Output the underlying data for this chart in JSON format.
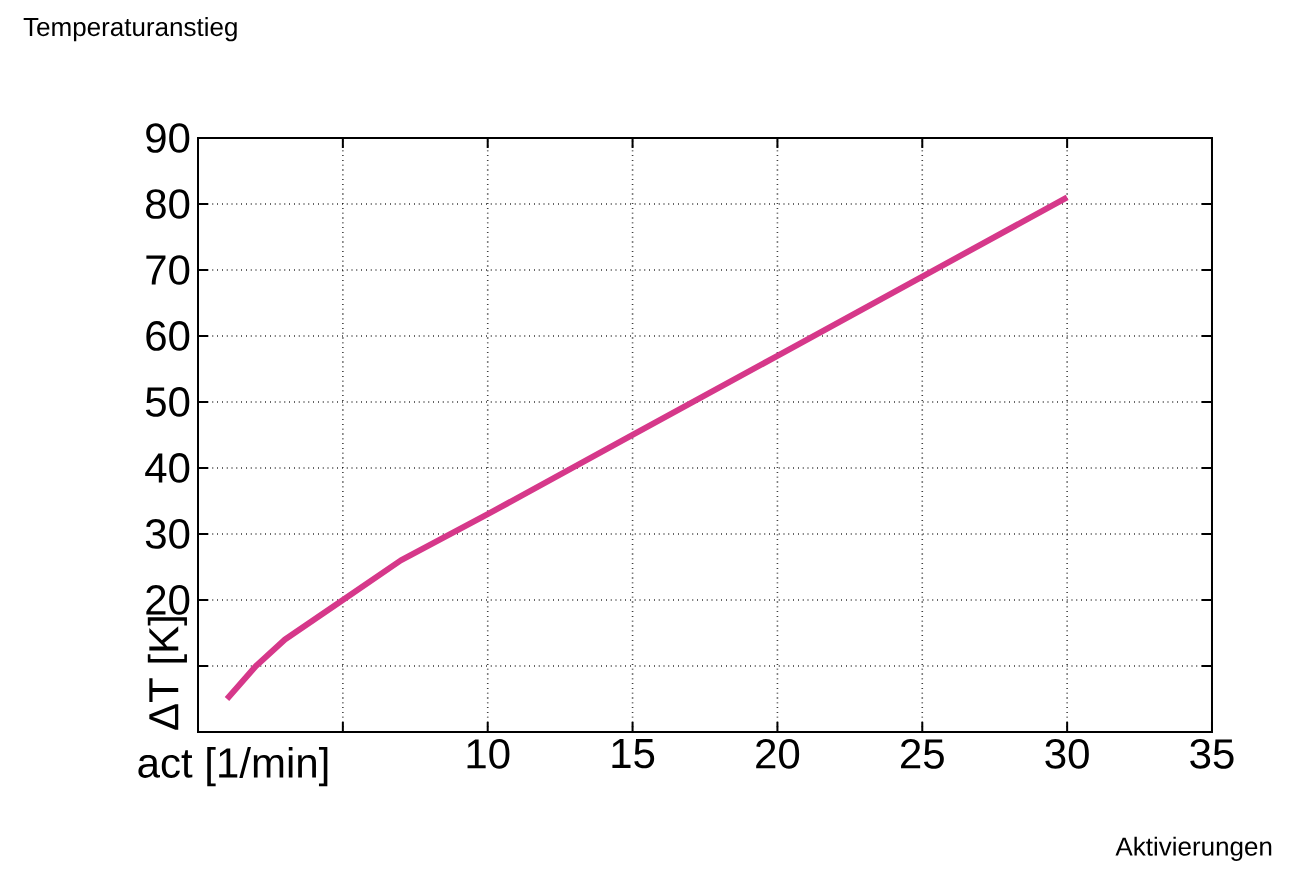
{
  "chart_data": {
    "type": "line",
    "title": "Temperaturanstieg",
    "xlabel": "act [1/min]",
    "ylabel": "ΔT [K]",
    "annotations": [
      "Aktivierungen"
    ],
    "x": [
      1,
      2,
      3,
      4,
      5,
      7,
      10,
      15,
      20,
      25,
      30
    ],
    "series": [
      {
        "color": "#d6388a",
        "values": [
          5,
          10,
          14,
          17,
          20,
          26,
          33,
          45,
          57,
          69,
          81
        ]
      }
    ],
    "xlim": [
      0,
      35
    ],
    "xticks": [
      {
        "value": 0,
        "label": null
      },
      {
        "value": 5,
        "label": null
      },
      10,
      15,
      20,
      25,
      30,
      35
    ],
    "ylim": [
      0,
      90
    ],
    "yticks": [
      {
        "value": 0,
        "label": null
      },
      {
        "value": 10,
        "label": null
      },
      20,
      30,
      40,
      50,
      60,
      70,
      80,
      90
    ],
    "grid": true,
    "marker": "none",
    "line_style": "solid"
  }
}
